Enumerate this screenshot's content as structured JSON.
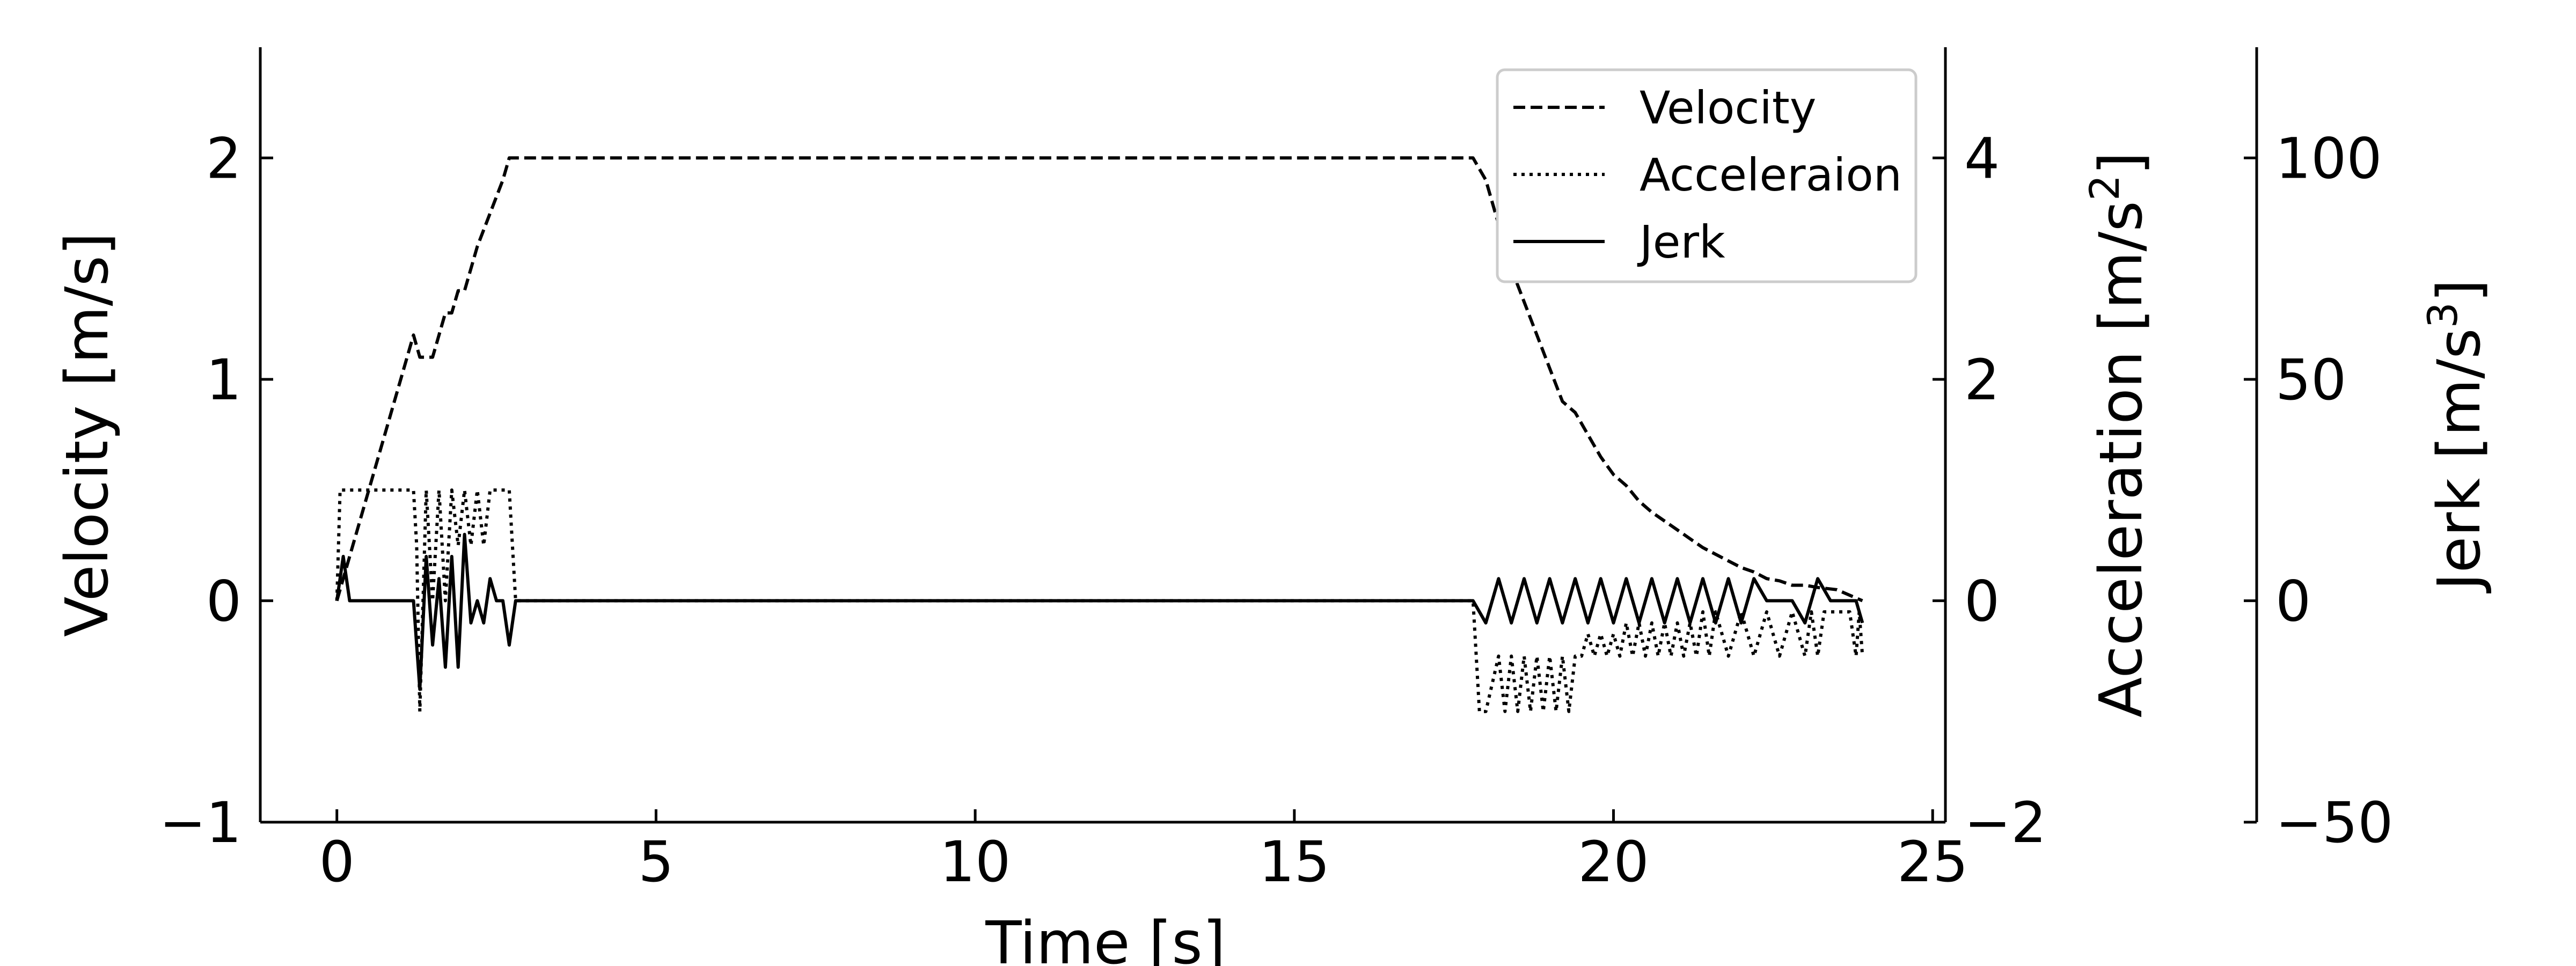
{
  "chart_data": {
    "type": "line",
    "x_axis": {
      "label": "Time [s]",
      "range": [
        -1.2,
        25.2
      ],
      "ticks": [
        0,
        5,
        10,
        15,
        20,
        25
      ],
      "tick_labels": [
        "0",
        "5",
        "10",
        "15",
        "20",
        "25"
      ]
    },
    "axes": {
      "velocity": {
        "label": "Velocity [m/s]",
        "range": [
          -1,
          2.5
        ],
        "ticks": [
          -1,
          0,
          1,
          2
        ],
        "tick_labels": [
          "−1",
          "0",
          "1",
          "2"
        ]
      },
      "acceleration": {
        "label_main": "Acceleration [m/s",
        "label_sup": "2",
        "label_end": "]",
        "range": [
          -2,
          5
        ],
        "ticks": [
          -2,
          0,
          2,
          4
        ],
        "tick_labels": [
          "−2",
          "0",
          "2",
          "4"
        ]
      },
      "jerk": {
        "label_main": "Jerk [m/s",
        "label_sup": "3",
        "label_end": "]",
        "range": [
          -50,
          125
        ],
        "ticks": [
          -50,
          0,
          50,
          100
        ],
        "tick_labels": [
          "−50",
          "0",
          "50",
          "100"
        ]
      }
    },
    "legend": {
      "position": "upper-right",
      "entries": [
        "Velocity",
        "Acceleraion",
        "Jerk"
      ]
    },
    "series": [
      {
        "name": "Velocity",
        "axis": "velocity",
        "style": "dashed",
        "x": [
          0,
          0.2,
          0.5,
          0.8,
          1.1,
          1.2,
          1.3,
          1.5,
          1.7,
          1.8,
          1.9,
          2.0,
          2.2,
          2.4,
          2.6,
          2.7,
          2.8,
          10,
          17.8,
          18.0,
          18.2,
          18.4,
          18.6,
          18.8,
          19.0,
          19.2,
          19.4,
          19.6,
          19.8,
          20.0,
          20.2,
          20.4,
          20.6,
          20.8,
          21.0,
          21.2,
          21.4,
          21.6,
          21.8,
          22.0,
          22.2,
          22.4,
          22.6,
          22.8,
          23.0,
          23.2,
          23.5,
          23.9
        ],
        "y": [
          0,
          0.2,
          0.5,
          0.8,
          1.1,
          1.2,
          1.1,
          1.1,
          1.3,
          1.3,
          1.4,
          1.4,
          1.6,
          1.75,
          1.9,
          2.0,
          2.0,
          2.0,
          2.0,
          1.9,
          1.7,
          1.5,
          1.35,
          1.2,
          1.05,
          0.9,
          0.85,
          0.75,
          0.65,
          0.57,
          0.52,
          0.45,
          0.4,
          0.36,
          0.32,
          0.28,
          0.24,
          0.21,
          0.18,
          0.15,
          0.13,
          0.1,
          0.09,
          0.07,
          0.07,
          0.06,
          0.05,
          0.0
        ]
      },
      {
        "name": "Acceleraion",
        "axis": "acceleration",
        "style": "dotted",
        "x": [
          0,
          0.05,
          1.2,
          1.25,
          1.3,
          1.4,
          1.5,
          1.6,
          1.7,
          1.8,
          1.9,
          2.0,
          2.1,
          2.2,
          2.3,
          2.4,
          2.5,
          2.6,
          2.7,
          2.8,
          17.8,
          17.9,
          18.0,
          18.2,
          18.3,
          18.4,
          18.5,
          18.6,
          18.7,
          18.8,
          18.9,
          19.0,
          19.1,
          19.2,
          19.3,
          19.4,
          19.5,
          19.6,
          19.7,
          19.8,
          19.9,
          20.0,
          20.1,
          20.2,
          20.3,
          20.4,
          20.5,
          20.6,
          20.7,
          20.8,
          20.9,
          21.0,
          21.1,
          21.2,
          21.3,
          21.4,
          21.5,
          21.6,
          21.8,
          22.0,
          22.2,
          22.4,
          22.6,
          22.8,
          23.0,
          23.1,
          23.2,
          23.3,
          23.5,
          23.7,
          23.8,
          23.85,
          23.9
        ],
        "y": [
          0,
          1.0,
          1.0,
          0.5,
          -1.0,
          1.0,
          0,
          1.0,
          0,
          1.0,
          0.5,
          1.0,
          0.5,
          1.0,
          0.5,
          1.0,
          1.0,
          1.0,
          1.0,
          0,
          0,
          -1.0,
          -1.0,
          -0.5,
          -1.0,
          -0.5,
          -1.0,
          -0.5,
          -1.0,
          -0.5,
          -1.0,
          -0.5,
          -1.0,
          -0.5,
          -1.0,
          -0.5,
          -0.5,
          -0.3,
          -0.5,
          -0.3,
          -0.5,
          -0.3,
          -0.5,
          -0.2,
          -0.5,
          -0.2,
          -0.5,
          -0.2,
          -0.5,
          -0.2,
          -0.5,
          -0.2,
          -0.5,
          -0.2,
          -0.5,
          -0.1,
          -0.5,
          -0.1,
          -0.5,
          -0.1,
          -0.5,
          -0.1,
          -0.5,
          -0.1,
          -0.5,
          -0.1,
          -0.5,
          -0.1,
          -0.1,
          -0.1,
          -0.5,
          -0.1,
          -0.5
        ]
      },
      {
        "name": "Jerk",
        "axis": "jerk",
        "style": "solid",
        "x": [
          0,
          0.1,
          0.2,
          1.2,
          1.3,
          1.4,
          1.5,
          1.6,
          1.7,
          1.8,
          1.9,
          2.0,
          2.1,
          2.2,
          2.3,
          2.4,
          2.5,
          2.6,
          2.7,
          2.8,
          17.8,
          18.0,
          18.2,
          18.4,
          18.6,
          18.8,
          19.0,
          19.2,
          19.4,
          19.6,
          19.8,
          20.0,
          20.2,
          20.4,
          20.6,
          20.8,
          21.0,
          21.2,
          21.4,
          21.6,
          21.8,
          22.0,
          22.2,
          22.4,
          22.6,
          22.8,
          23.0,
          23.2,
          23.4,
          23.6,
          23.8,
          23.9
        ],
        "y": [
          0,
          10,
          0,
          0,
          -20,
          10,
          -10,
          5,
          -15,
          10,
          -15,
          15,
          -5,
          0,
          -5,
          5,
          0,
          0,
          -10,
          0,
          0,
          -5,
          5,
          -5,
          5,
          -5,
          5,
          -5,
          5,
          -5,
          5,
          -5,
          5,
          -5,
          5,
          -5,
          5,
          -5,
          5,
          -5,
          5,
          -5,
          5,
          0,
          0,
          0,
          -5,
          5,
          0,
          0,
          0,
          -5
        ]
      }
    ]
  }
}
